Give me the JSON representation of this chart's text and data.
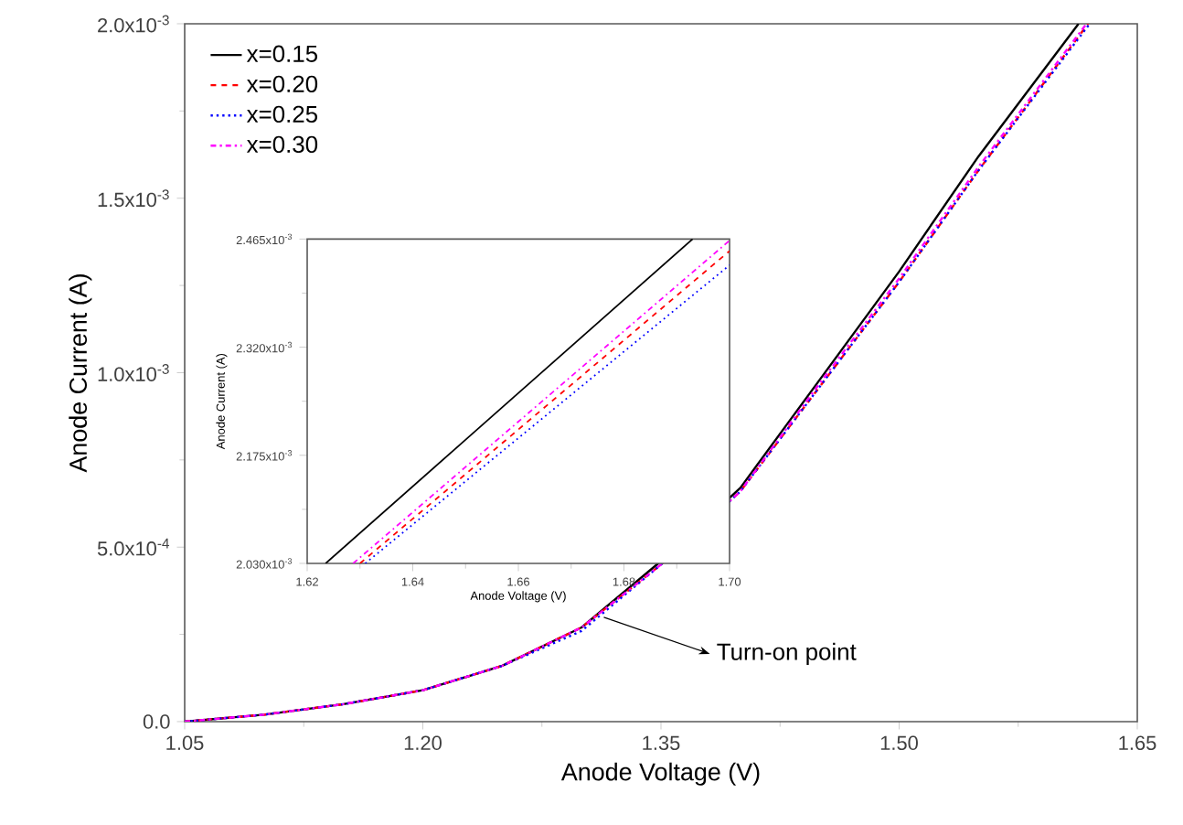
{
  "chart_data": [
    {
      "type": "line",
      "xlabel": "Anode Voltage (V)",
      "ylabel": "Anode Current (A)",
      "xlim": [
        1.05,
        1.65
      ],
      "xticks": [
        1.05,
        {
          "value": 1.2,
          "label": "1.20"
        },
        1.35,
        {
          "value": 1.5,
          "label": "1.50"
        },
        1.65
      ],
      "ylim": [
        0,
        0.002
      ],
      "yticks": [
        {
          "value": 0,
          "label": "0.0"
        },
        {
          "value": 0.0005,
          "label": "5.0x10$^{-4}$"
        },
        {
          "value": 0.001,
          "label": "1.0x10$^{-3}$"
        },
        {
          "value": 0.0015,
          "label": "1.5x10$^{-3}$"
        },
        {
          "value": 0.002,
          "label": "2.0x10$^{-3}$"
        }
      ],
      "legend": "top left",
      "annotations": [
        {
          "text": "Turn-on point",
          "x": 1.314,
          "y": 0.000299
        }
      ],
      "series": [
        {
          "name": "x=0.15",
          "color": "#000000",
          "line_style": "solid",
          "x": [
            1.05,
            1.1,
            1.15,
            1.2,
            1.25,
            1.3,
            1.35,
            1.4,
            1.45,
            1.5,
            1.55,
            1.613
          ],
          "values": [
            0.0,
            2e-05,
            5e-05,
            9e-05,
            0.00016,
            0.00027,
            0.00046,
            0.00067,
            0.00098,
            0.00129,
            0.00162,
            0.002
          ]
        },
        {
          "name": "x=0.20",
          "color": "#ff0000",
          "line_style": "dashed",
          "x": [
            1.05,
            1.1,
            1.15,
            1.2,
            1.25,
            1.3,
            1.35,
            1.4,
            1.45,
            1.5,
            1.55,
            1.619
          ],
          "values": [
            0.0,
            2e-05,
            5e-05,
            9e-05,
            0.00016,
            0.00027,
            0.00045,
            0.00066,
            0.00096,
            0.00126,
            0.00158,
            0.002
          ]
        },
        {
          "name": "x=0.25",
          "color": "#0000ff",
          "line_style": "dotted",
          "x": [
            1.05,
            1.1,
            1.15,
            1.2,
            1.25,
            1.3,
            1.35,
            1.4,
            1.45,
            1.5,
            1.55,
            1.62
          ],
          "values": [
            0.0,
            2e-05,
            5e-05,
            9e-05,
            0.00016,
            0.00026,
            0.00045,
            0.00066,
            0.00096,
            0.00126,
            0.00158,
            0.002
          ]
        },
        {
          "name": "x=0.30",
          "color": "#ff00ff",
          "line_style": "dashdot",
          "x": [
            1.05,
            1.1,
            1.15,
            1.2,
            1.25,
            1.3,
            1.35,
            1.4,
            1.45,
            1.5,
            1.55,
            1.618
          ],
          "values": [
            0.0,
            2e-05,
            5e-05,
            9e-05,
            0.00016,
            0.00027,
            0.00045,
            0.00066,
            0.00097,
            0.00127,
            0.00159,
            0.002
          ]
        }
      ]
    },
    {
      "type": "line",
      "xlabel": "Anode Voltage (V)",
      "ylabel": "Anode Current (A)",
      "xlim": [
        1.62,
        1.7
      ],
      "xticks": [
        1.62,
        1.64,
        1.66,
        1.68,
        {
          "value": 1.7,
          "label": "1.70"
        }
      ],
      "ylim": [
        0.00203,
        0.002465
      ],
      "yticks": [
        {
          "value": 0.00203,
          "label": "2.030x10$^{-3}$"
        },
        {
          "value": 0.002175,
          "label": "2.175x10$^{-3}$"
        },
        {
          "value": 0.00232,
          "label": "2.320x10$^{-3}$"
        },
        {
          "value": 0.002465,
          "label": "2.465x10$^{-3}$"
        }
      ],
      "series": [
        {
          "color": "#000000",
          "line_style": "solid",
          "x": [
            1.6235,
            1.693
          ],
          "values": [
            0.00203,
            0.002465
          ]
        },
        {
          "color": "#ff0000",
          "line_style": "dashed",
          "x": [
            1.63,
            1.7
          ],
          "values": [
            0.00203,
            0.002449
          ]
        },
        {
          "color": "#0000ff",
          "line_style": "dotted",
          "x": [
            1.631,
            1.7
          ],
          "values": [
            0.00203,
            0.00243
          ]
        },
        {
          "color": "#ff00ff",
          "line_style": "dashdot",
          "x": [
            1.6287,
            1.7
          ],
          "values": [
            0.00203,
            0.002463
          ]
        }
      ]
    }
  ]
}
